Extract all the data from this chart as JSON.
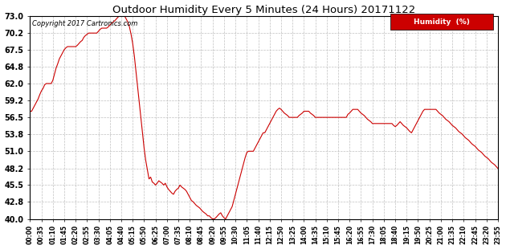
{
  "title": "Outdoor Humidity Every 5 Minutes (24 Hours) 20171122",
  "copyright": "Copyright 2017 Cartronics.com",
  "legend_label": "Humidity  (%)",
  "line_color": "#cc0000",
  "background_color": "#ffffff",
  "grid_color": "#b0b0b0",
  "ylim": [
    40.0,
    73.0
  ],
  "yticks": [
    40.0,
    42.8,
    45.5,
    48.2,
    51.0,
    53.8,
    56.5,
    59.2,
    62.0,
    64.8,
    67.5,
    70.2,
    73.0
  ],
  "humidity_data": [
    57.5,
    57.5,
    58.0,
    58.5,
    59.0,
    59.5,
    60.2,
    60.8,
    61.2,
    61.8,
    62.0,
    62.0,
    62.0,
    62.0,
    62.5,
    63.5,
    64.5,
    65.2,
    66.0,
    66.5,
    67.0,
    67.5,
    67.8,
    68.0,
    68.0,
    68.0,
    68.0,
    68.0,
    68.0,
    68.2,
    68.5,
    68.8,
    69.0,
    69.5,
    69.8,
    70.0,
    70.2,
    70.2,
    70.2,
    70.2,
    70.2,
    70.2,
    70.5,
    70.8,
    71.0,
    71.0,
    71.0,
    71.0,
    71.2,
    71.5,
    71.8,
    72.0,
    72.2,
    72.5,
    72.8,
    73.0,
    73.0,
    73.0,
    73.0,
    72.5,
    72.0,
    71.2,
    70.0,
    68.5,
    66.5,
    64.0,
    61.5,
    59.0,
    56.5,
    54.0,
    51.5,
    49.5,
    48.0,
    46.5,
    46.8,
    46.0,
    45.8,
    45.5,
    45.8,
    46.2,
    46.0,
    45.8,
    45.5,
    45.8,
    45.2,
    44.8,
    44.5,
    44.2,
    44.0,
    44.5,
    44.8,
    45.0,
    45.5,
    45.2,
    45.0,
    44.8,
    44.5,
    44.0,
    43.5,
    43.0,
    42.8,
    42.5,
    42.2,
    42.0,
    41.8,
    41.5,
    41.2,
    41.0,
    40.8,
    40.5,
    40.5,
    40.2,
    40.0,
    40.0,
    40.2,
    40.5,
    40.8,
    41.0,
    40.5,
    40.2,
    40.0,
    40.5,
    41.0,
    41.5,
    42.0,
    43.0,
    44.0,
    45.0,
    46.0,
    47.0,
    48.0,
    49.0,
    50.0,
    50.8,
    51.0,
    51.0,
    51.0,
    51.0,
    51.5,
    52.0,
    52.5,
    53.0,
    53.5,
    54.0,
    54.0,
    54.5,
    55.0,
    55.5,
    56.0,
    56.5,
    57.0,
    57.5,
    57.8,
    58.0,
    57.8,
    57.5,
    57.2,
    57.0,
    56.8,
    56.5,
    56.5,
    56.5,
    56.5,
    56.5,
    56.5,
    56.8,
    57.0,
    57.2,
    57.5,
    57.5,
    57.5,
    57.5,
    57.2,
    57.0,
    56.8,
    56.5,
    56.5,
    56.5,
    56.5,
    56.5,
    56.5,
    56.5,
    56.5,
    56.5,
    56.5,
    56.5,
    56.5,
    56.5,
    56.5,
    56.5,
    56.5,
    56.5,
    56.5,
    56.5,
    56.5,
    57.0,
    57.2,
    57.5,
    57.8,
    57.8,
    57.8,
    57.8,
    57.5,
    57.2,
    57.0,
    56.8,
    56.5,
    56.2,
    56.0,
    55.8,
    55.5,
    55.5,
    55.5,
    55.5,
    55.5,
    55.5,
    55.5,
    55.5,
    55.5,
    55.5,
    55.5,
    55.5,
    55.5,
    55.2,
    55.0,
    55.2,
    55.5,
    55.8,
    55.5,
    55.2,
    55.0,
    54.8,
    54.5,
    54.2,
    54.0,
    54.5,
    55.0,
    55.5,
    56.0,
    56.5,
    57.0,
    57.5,
    57.8,
    57.8,
    57.8,
    57.8,
    57.8,
    57.8,
    57.8,
    57.8,
    57.5,
    57.2,
    57.0,
    56.8,
    56.5,
    56.2,
    56.0,
    55.8,
    55.5,
    55.2,
    55.0,
    54.8,
    54.5,
    54.2,
    54.0,
    53.8,
    53.5,
    53.2,
    53.0,
    52.8,
    52.5,
    52.2,
    52.0,
    51.8,
    51.5,
    51.2,
    51.0,
    50.8,
    50.5,
    50.2,
    50.0,
    49.8,
    49.5,
    49.2,
    49.0,
    48.8,
    48.5,
    48.2,
    48.0,
    47.8
  ]
}
